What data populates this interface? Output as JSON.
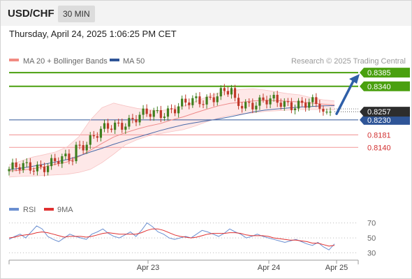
{
  "header": {
    "symbol": "USD/CHF",
    "timeframe": "30 MIN",
    "datetime": "Thursday, April 24, 2025 1:06:25 PM CET"
  },
  "legend": [
    {
      "label": "MA 20 + Bollinger Bands",
      "color": "#f28b82"
    },
    {
      "label": "MA 50",
      "color": "#2f5597"
    }
  ],
  "watermark": "Research © 2025 Trading Central",
  "chart_data": [
    {
      "type": "candlestick",
      "ylim": [
        0.7958,
        0.8424
      ],
      "x_ticks": [
        "Apr 23",
        "Apr 24",
        "Apr 25"
      ],
      "last_price": "0.8257",
      "levels": [
        {
          "value": 0.8385,
          "label": "0.8385",
          "kind": "resistance"
        },
        {
          "value": 0.834,
          "label": "0.8340",
          "kind": "resistance"
        },
        {
          "value": 0.823,
          "label": "0.8230",
          "kind": "pivot"
        },
        {
          "value": 0.8181,
          "label": "0.8181",
          "kind": "support"
        },
        {
          "value": 0.814,
          "label": "0.8140",
          "kind": "support"
        }
      ],
      "projection": {
        "from": 0.825,
        "to": 0.8385
      },
      "ma50": [
        0.8067,
        0.8072,
        0.8078,
        0.8085,
        0.8092,
        0.81,
        0.8112,
        0.8125,
        0.8137,
        0.815,
        0.8162,
        0.8173,
        0.8184,
        0.8195,
        0.8205,
        0.8214,
        0.8221,
        0.8227,
        0.8233,
        0.824,
        0.8248,
        0.8256,
        0.8262,
        0.8266,
        0.8269,
        0.8272,
        0.8274,
        0.8276,
        0.8277
      ],
      "ma20": [
        0.8063,
        0.8065,
        0.807,
        0.8076,
        0.8085,
        0.8092,
        0.811,
        0.8131,
        0.8153,
        0.8174,
        0.8188,
        0.82,
        0.821,
        0.8218,
        0.823,
        0.824,
        0.8253,
        0.8265,
        0.8276,
        0.8284,
        0.8288,
        0.8292,
        0.8294,
        0.8293,
        0.8291,
        0.8289,
        0.8285,
        0.8282,
        0.8279
      ],
      "bollinger_upper": [
        0.8083,
        0.8095,
        0.8108,
        0.8116,
        0.8125,
        0.8142,
        0.8175,
        0.823,
        0.827,
        0.8285,
        0.8276,
        0.8268,
        0.8263,
        0.826,
        0.8266,
        0.8275,
        0.829,
        0.8305,
        0.8318,
        0.8325,
        0.833,
        0.8332,
        0.8328,
        0.8322,
        0.8316,
        0.8312,
        0.8303,
        0.8296,
        0.8292
      ],
      "bollinger_lower": [
        0.8043,
        0.8045,
        0.8046,
        0.8048,
        0.805,
        0.8052,
        0.8058,
        0.8068,
        0.809,
        0.8118,
        0.8148,
        0.8165,
        0.8178,
        0.8185,
        0.8192,
        0.8198,
        0.821,
        0.8224,
        0.8236,
        0.8245,
        0.825,
        0.8253,
        0.8258,
        0.826,
        0.8262,
        0.8264,
        0.8264,
        0.8264,
        0.8263
      ]
    },
    {
      "type": "line",
      "series": [
        {
          "name": "RSI",
          "color": "#6a8fd1"
        },
        {
          "name": "9MA",
          "color": "#e03030"
        }
      ],
      "ylim": [
        24,
        78
      ],
      "y_ticks": [
        70,
        50,
        30
      ],
      "rsi": [
        48,
        52,
        55,
        50,
        58,
        66,
        62,
        52,
        48,
        45,
        50,
        55,
        52,
        50,
        48,
        55,
        58,
        62,
        56,
        52,
        50,
        54,
        58,
        52,
        60,
        70,
        65,
        58,
        55,
        50,
        48,
        50,
        52,
        50,
        55,
        60,
        58,
        55,
        52,
        56,
        62,
        58,
        55,
        50,
        52,
        55,
        52,
        50,
        48,
        46,
        44,
        46,
        48,
        45,
        42,
        40,
        44,
        38,
        34,
        42
      ],
      "ma9": [
        50,
        51,
        53,
        54,
        55,
        57,
        58,
        57,
        55,
        53,
        51,
        52,
        52,
        52,
        51,
        52,
        54,
        56,
        57,
        56,
        55,
        55,
        55,
        55,
        57,
        60,
        62,
        62,
        60,
        57,
        54,
        52,
        51,
        50,
        51,
        53,
        55,
        56,
        56,
        56,
        57,
        57,
        56,
        54,
        53,
        53,
        53,
        52,
        50,
        49,
        48,
        47,
        47,
        46,
        45,
        43,
        43,
        41,
        39,
        40
      ]
    }
  ]
}
